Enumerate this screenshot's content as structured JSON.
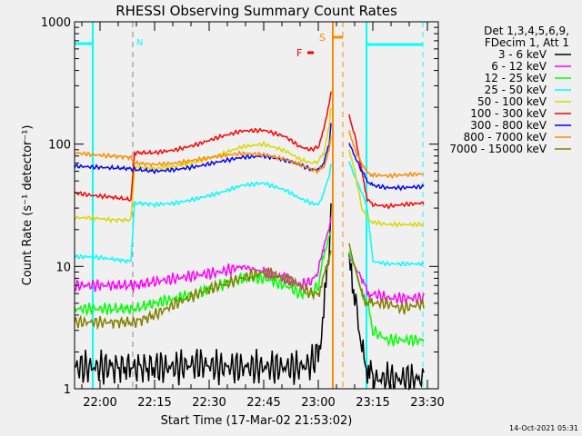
{
  "chart_data": {
    "type": "line",
    "title": "RHESSI Observing Summary Count Rates",
    "xlabel": "Start Time (17-Mar-02 21:53:02)",
    "ylabel": "Count Rate (s⁻¹ detector⁻¹)",
    "yscale": "log",
    "ylim": [
      1,
      1000
    ],
    "xlim_minutes_after_2153": [
      0,
      100
    ],
    "y_ticks": [
      "1",
      "10",
      "100",
      "1000"
    ],
    "x_ticks": [
      {
        "label": "22:00",
        "min": 7
      },
      {
        "label": "22:15",
        "min": 22
      },
      {
        "label": "22:30",
        "min": 37
      },
      {
        "label": "22:45",
        "min": 52
      },
      {
        "label": "23:00",
        "min": 67
      },
      {
        "label": "23:15",
        "min": 82
      },
      {
        "label": "23:30",
        "min": 97
      }
    ],
    "legend_header": [
      "Det 1,3,4,5,6,9,",
      "FDecim 1, Att 1"
    ],
    "legend_position": "right",
    "x": [
      0,
      5,
      10,
      15.5,
      16.5,
      22,
      28,
      34,
      40,
      46,
      52,
      58,
      62,
      65,
      67,
      68.5,
      70,
      70.5,
      73,
      75.5,
      77,
      79,
      80.5,
      82,
      86,
      90,
      96
    ],
    "series": [
      {
        "name": "3 - 6 keV",
        "color": "#000000",
        "values": [
          1.5,
          1.5,
          1.5,
          1.5,
          1.5,
          1.5,
          1.5,
          1.6,
          1.5,
          1.5,
          1.5,
          1.5,
          1.5,
          1.6,
          2,
          4,
          15,
          35,
          null,
          10,
          6,
          2,
          1.5,
          1.2,
          1.2,
          1.2,
          1.2
        ]
      },
      {
        "name": "6 - 12 keV",
        "color": "#ff00ff",
        "values": [
          7,
          7,
          7,
          7,
          7,
          7.5,
          8,
          8.5,
          9,
          10,
          9,
          8,
          7,
          7.5,
          9,
          15,
          20,
          25,
          null,
          12,
          10,
          8,
          6,
          6,
          5.5,
          5.5,
          5.5
        ]
      },
      {
        "name": "12 - 25 keV",
        "color": "#00ff00",
        "values": [
          4.5,
          4.5,
          4.5,
          4.5,
          4.5,
          5,
          5.5,
          6,
          7,
          8,
          8,
          7,
          6,
          6,
          7,
          12,
          18,
          20,
          null,
          13,
          10,
          6,
          5,
          3,
          2.5,
          2.5,
          2.5
        ]
      },
      {
        "name": "25 - 50 keV",
        "color": "#00ffff",
        "values": [
          12,
          12,
          11.5,
          11,
          33,
          32,
          33,
          36,
          40,
          46,
          48,
          42,
          36,
          33,
          32,
          40,
          55,
          70,
          null,
          70,
          55,
          40,
          30,
          11,
          10.5,
          10.5,
          10.5
        ]
      },
      {
        "name": "50 - 100 keV",
        "color": "#d8d800",
        "values": [
          25,
          25,
          24,
          24,
          65,
          63,
          66,
          72,
          82,
          95,
          100,
          88,
          75,
          70,
          72,
          85,
          140,
          200,
          null,
          90,
          60,
          30,
          25,
          23,
          22,
          22,
          22
        ]
      },
      {
        "name": "100 - 300 keV",
        "color": "#ff0000",
        "values": [
          40,
          38,
          37,
          35,
          85,
          85,
          90,
          100,
          115,
          128,
          130,
          115,
          95,
          90,
          95,
          130,
          220,
          280,
          null,
          170,
          120,
          60,
          35,
          32,
          31,
          32,
          33
        ]
      },
      {
        "name": "300 - 800 keV",
        "color": "#0000ff",
        "values": [
          66,
          65,
          64,
          63,
          62,
          60,
          62,
          66,
          72,
          78,
          80,
          74,
          68,
          62,
          62,
          70,
          100,
          150,
          null,
          100,
          80,
          60,
          50,
          46,
          44,
          44,
          45
        ]
      },
      {
        "name": "800 - 7000 keV",
        "color": "#ff8c00",
        "values": [
          85,
          82,
          80,
          78,
          70,
          68,
          70,
          75,
          80,
          84,
          82,
          75,
          68,
          62,
          60,
          65,
          90,
          120,
          null,
          130,
          90,
          70,
          58,
          56,
          55,
          56,
          57
        ]
      },
      {
        "name": "7000 - 15000 keV",
        "color": "#808000",
        "values": [
          3.5,
          3.5,
          3.5,
          3.5,
          3.5,
          4,
          5,
          6,
          7,
          8,
          9,
          8,
          7,
          6,
          6,
          8,
          12,
          14,
          null,
          15,
          10,
          6,
          5,
          5,
          5,
          4.5,
          5
        ]
      }
    ],
    "annotations": {
      "night_label": "N",
      "saa_label": "S",
      "flare_label": "F",
      "night_color": "#00ffff",
      "saa_color": "#ff8c00",
      "flare_color": "#ff0000"
    }
  },
  "footer": {
    "timestamp": "14-Oct-2021 05:31"
  }
}
